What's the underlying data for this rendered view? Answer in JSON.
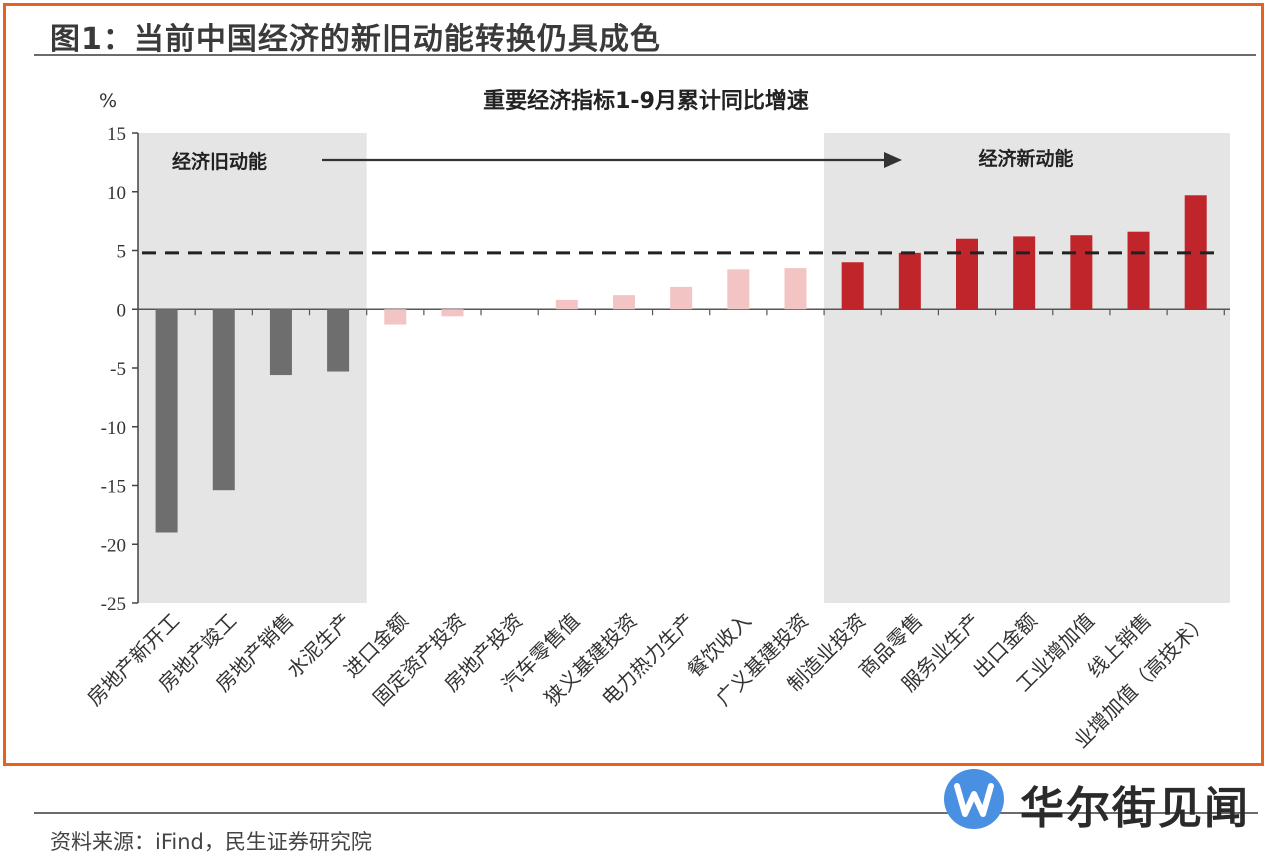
{
  "figure_title": "图1：当前中国经济的新旧动能转换仍具成色",
  "source": "资料来源：iFind，民生证券研究院",
  "watermark": {
    "text": "华尔街见闻",
    "icon": "wallstreetcn-logo-icon"
  },
  "colors": {
    "frame": "#e8621d",
    "old": "#6e6e6e",
    "mid": "#f2c4c4",
    "new": "#c0252c",
    "shade": "#e5e5e5"
  },
  "chart_data": {
    "type": "bar",
    "title": "重要经济指标1-9月累计同比增速",
    "ylabel": "%",
    "ylim": [
      -25,
      15
    ],
    "yticks": [
      15,
      10,
      5,
      0,
      -5,
      -10,
      -15,
      -20,
      -25
    ],
    "reference_line": 4.8,
    "grid": false,
    "categories": [
      "房地产新开工",
      "房地产竣工",
      "房地产销售",
      "水泥生产",
      "进口金额",
      "固定资产投资",
      "房地产投资",
      "汽车零售值",
      "狭义基建投资",
      "电力热力生产",
      "餐饮收入",
      "广义基建投资",
      "制造业投资",
      "商品零售",
      "服务业生产",
      "出口金额",
      "工业增加值",
      "线上销售",
      "业增加值（高技术）"
    ],
    "values": [
      -19.0,
      -15.4,
      -5.6,
      -5.3,
      -1.3,
      -0.6,
      0,
      0.8,
      1.2,
      1.9,
      3.4,
      3.5,
      4.0,
      4.8,
      6.0,
      6.2,
      6.3,
      6.6,
      9.7
    ],
    "groups": [
      "old",
      "old",
      "old",
      "old",
      "mid",
      "mid",
      "mid",
      "mid",
      "mid",
      "mid",
      "mid",
      "mid",
      "new",
      "new",
      "new",
      "new",
      "new",
      "new",
      "new"
    ],
    "annotations": {
      "old_label": "经济旧动能",
      "new_label": "经济新动能"
    }
  }
}
